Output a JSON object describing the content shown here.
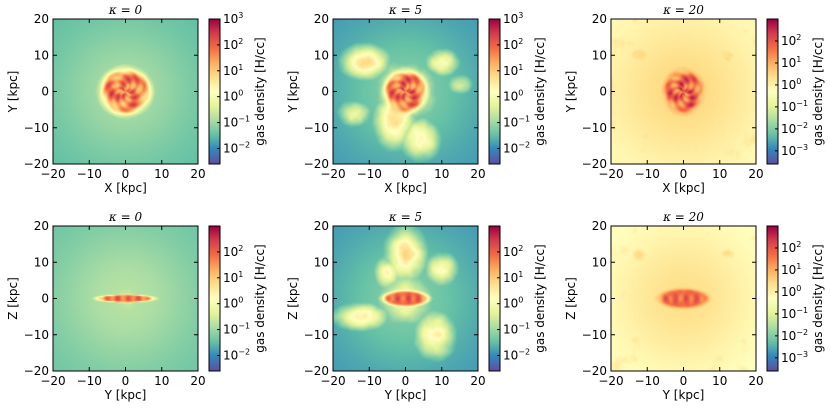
{
  "chart_data": [
    {
      "type": "heatmap",
      "panel": "xy-k0",
      "title": "κ = 0",
      "xlabel": "X [kpc]",
      "ylabel": "Y [kpc]",
      "xlim": [
        -20,
        20
      ],
      "ylim": [
        -20,
        20
      ],
      "xticks": [
        "−20",
        "−10",
        "0",
        "10",
        "20"
      ],
      "yticks": [
        "−20",
        "−10",
        "0",
        "10",
        "20"
      ],
      "colorbar": {
        "label": "gas density [H/cc]",
        "ticks": [
          {
            "base": "10",
            "exp": "3"
          },
          {
            "base": "10",
            "exp": "2"
          },
          {
            "base": "10",
            "exp": "1"
          },
          {
            "base": "10",
            "exp": "0"
          },
          {
            "base": "10",
            "exp": "-1"
          },
          {
            "base": "10",
            "exp": "-2"
          }
        ],
        "logmin": -2.6,
        "logmax": 3
      },
      "morphology": {
        "bg": 0.18,
        "core": {
          "rx": 6.5,
          "ry": 6.0,
          "level": 0.78
        },
        "spiral": true,
        "halo": {
          "r": 9,
          "level": 0.4
        },
        "lobes": []
      }
    },
    {
      "type": "heatmap",
      "panel": "xy-k5",
      "title": "κ = 5",
      "xlabel": "X [kpc]",
      "ylabel": "Y [kpc]",
      "xlim": [
        -20,
        20
      ],
      "ylim": [
        -20,
        20
      ],
      "xticks": [
        "−20",
        "−10",
        "0",
        "10",
        "20"
      ],
      "yticks": [
        "−20",
        "−10",
        "0",
        "10",
        "20"
      ],
      "colorbar": {
        "label": "gas density [H/cc]",
        "ticks": [
          {
            "base": "10",
            "exp": "3"
          },
          {
            "base": "10",
            "exp": "2"
          },
          {
            "base": "10",
            "exp": "1"
          },
          {
            "base": "10",
            "exp": "0"
          },
          {
            "base": "10",
            "exp": "-1"
          },
          {
            "base": "10",
            "exp": "-2"
          }
        ],
        "logmin": -2.6,
        "logmax": 3
      },
      "morphology": {
        "bg": 0.12,
        "core": {
          "rx": 5.5,
          "ry": 5.5,
          "level": 0.8
        },
        "spiral": true,
        "halo": {
          "r": 10,
          "level": 0.45
        },
        "lobes": [
          [
            -11,
            8,
            7,
            5,
            0.6
          ],
          [
            -3,
            -8,
            6,
            8,
            0.6
          ],
          [
            4,
            -13,
            6,
            6,
            0.55
          ],
          [
            10,
            8,
            5,
            4,
            0.5
          ],
          [
            -14,
            -6,
            5,
            4,
            0.45
          ],
          [
            15,
            2,
            4,
            3,
            0.4
          ]
        ]
      }
    },
    {
      "type": "heatmap",
      "panel": "xy-k20",
      "title": "κ = 20",
      "xlabel": "X [kpc]",
      "ylabel": "Y [kpc]",
      "xlim": [
        -20,
        20
      ],
      "ylim": [
        -20,
        20
      ],
      "xticks": [
        "−20",
        "−10",
        "0",
        "10",
        "20"
      ],
      "yticks": [
        "−20",
        "−10",
        "0",
        "10",
        "20"
      ],
      "colorbar": {
        "label": "gas density [H/cc]",
        "ticks": [
          {
            "base": "10",
            "exp": "2"
          },
          {
            "base": "10",
            "exp": "1"
          },
          {
            "base": "10",
            "exp": "0"
          },
          {
            "base": "10",
            "exp": "-1"
          },
          {
            "base": "10",
            "exp": "-2"
          },
          {
            "base": "10",
            "exp": "-3"
          }
        ],
        "logmin": -3.6,
        "logmax": 3
      },
      "morphology": {
        "bg": 0.5,
        "core": {
          "rx": 5.0,
          "ry": 5.5,
          "level": 0.82
        },
        "spiral": true,
        "halo": {
          "r": 14,
          "level": 0.6
        },
        "lobes": [
          [
            -12,
            10,
            7,
            6,
            0.62
          ],
          [
            10,
            -10,
            7,
            7,
            0.6
          ],
          [
            -10,
            -12,
            6,
            6,
            0.58
          ],
          [
            12,
            10,
            7,
            6,
            0.6
          ]
        ]
      }
    },
    {
      "type": "heatmap",
      "panel": "yz-k0",
      "title": "κ = 0",
      "xlabel": "Y [kpc]",
      "ylabel": "Z [kpc]",
      "xlim": [
        -20,
        20
      ],
      "ylim": [
        -20,
        20
      ],
      "xticks": [
        "−20",
        "−10",
        "0",
        "10",
        "20"
      ],
      "yticks": [
        "−20",
        "−10",
        "0",
        "10",
        "20"
      ],
      "colorbar": {
        "label": "gas density [H/cc]",
        "ticks": [
          {
            "base": "10",
            "exp": "2"
          },
          {
            "base": "10",
            "exp": "1"
          },
          {
            "base": "10",
            "exp": "0"
          },
          {
            "base": "10",
            "exp": "-1"
          },
          {
            "base": "10",
            "exp": "-2"
          }
        ],
        "logmin": -2.6,
        "logmax": 3
      },
      "morphology": {
        "bg": 0.2,
        "core": {
          "rx": 7.5,
          "ry": 1.0,
          "level": 0.8
        },
        "spiral": false,
        "halo": {
          "r": 9,
          "level": 0.35
        },
        "lobes": []
      }
    },
    {
      "type": "heatmap",
      "panel": "yz-k5",
      "title": "κ = 5",
      "xlabel": "Y [kpc]",
      "ylabel": "Z [kpc]",
      "xlim": [
        -20,
        20
      ],
      "ylim": [
        -20,
        20
      ],
      "xticks": [
        "−20",
        "−10",
        "0",
        "10",
        "20"
      ],
      "yticks": [
        "−20",
        "−10",
        "0",
        "10",
        "20"
      ],
      "colorbar": {
        "label": "gas density [H/cc]",
        "ticks": [
          {
            "base": "10",
            "exp": "2"
          },
          {
            "base": "10",
            "exp": "1"
          },
          {
            "base": "10",
            "exp": "0"
          },
          {
            "base": "10",
            "exp": "-1"
          },
          {
            "base": "10",
            "exp": "-2"
          }
        ],
        "logmin": -2.6,
        "logmax": 3
      },
      "morphology": {
        "bg": 0.12,
        "core": {
          "rx": 6.0,
          "ry": 2.0,
          "level": 0.82
        },
        "spiral": false,
        "halo": {
          "r": 9,
          "level": 0.45
        },
        "lobes": [
          [
            0,
            12,
            6,
            8,
            0.6
          ],
          [
            -12,
            -5,
            8,
            4,
            0.55
          ],
          [
            8,
            -10,
            6,
            7,
            0.55
          ],
          [
            10,
            8,
            5,
            5,
            0.5
          ],
          [
            -5,
            7,
            4,
            5,
            0.5
          ]
        ]
      }
    },
    {
      "type": "heatmap",
      "panel": "yz-k20",
      "title": "κ = 20",
      "xlabel": "Y [kpc]",
      "ylabel": "Z [kpc]",
      "xlim": [
        -20,
        20
      ],
      "ylim": [
        -20,
        20
      ],
      "xticks": [
        "−20",
        "−10",
        "0",
        "10",
        "20"
      ],
      "yticks": [
        "−20",
        "−10",
        "0",
        "10",
        "20"
      ],
      "colorbar": {
        "label": "gas density [H/cc]",
        "ticks": [
          {
            "base": "10",
            "exp": "2"
          },
          {
            "base": "10",
            "exp": "1"
          },
          {
            "base": "10",
            "exp": "0"
          },
          {
            "base": "10",
            "exp": "-1"
          },
          {
            "base": "10",
            "exp": "-2"
          },
          {
            "base": "10",
            "exp": "-3"
          }
        ],
        "logmin": -3.6,
        "logmax": 3
      },
      "morphology": {
        "bg": 0.48,
        "core": {
          "rx": 6.5,
          "ry": 2.5,
          "level": 0.82
        },
        "spiral": false,
        "halo": {
          "r": 13,
          "level": 0.58
        },
        "lobes": [
          [
            -12,
            12,
            7,
            6,
            0.6
          ],
          [
            10,
            -12,
            7,
            7,
            0.58
          ],
          [
            -13,
            -12,
            6,
            6,
            0.56
          ],
          [
            12,
            12,
            7,
            6,
            0.58
          ]
        ]
      }
    }
  ]
}
